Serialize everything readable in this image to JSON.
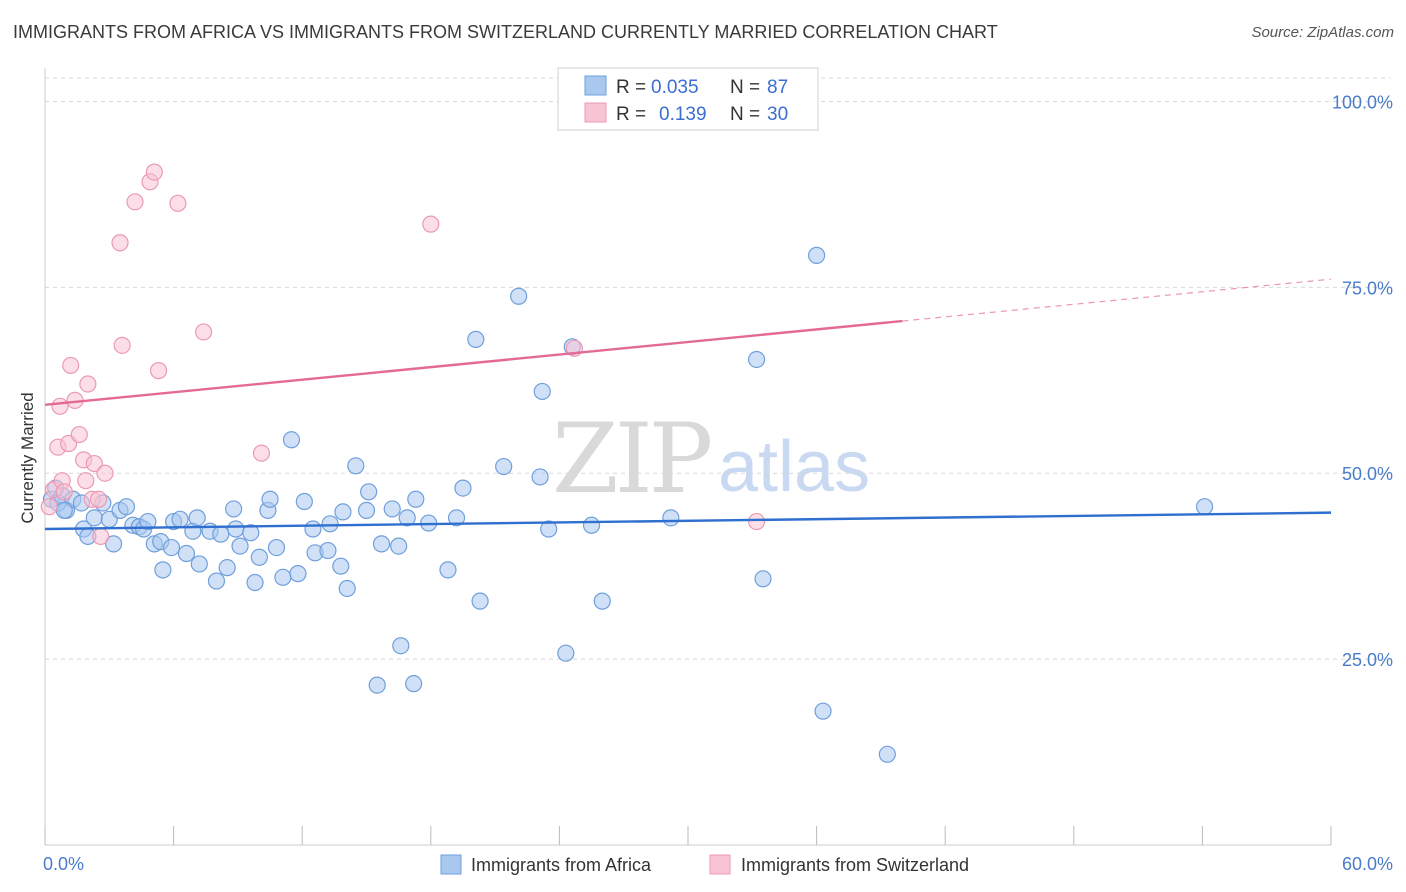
{
  "title": "IMMIGRANTS FROM AFRICA VS IMMIGRANTS FROM SWITZERLAND CURRENTLY MARRIED CORRELATION CHART",
  "source": "Source: ZipAtlas.com",
  "watermark": {
    "zip": "ZIP",
    "atlas": "atlas"
  },
  "colors": {
    "africa_fill": "#a9c8f0",
    "africa_stroke": "#6f9fdc",
    "africa_line": "#2f6fcf",
    "swiss_fill": "#f8c3d3",
    "swiss_stroke": "#ec9ab4",
    "swiss_line": "#e46a93",
    "tick_label": "#4a7cc9",
    "grid": "#d8d8d8"
  },
  "legend": {
    "r_label": "R =",
    "n_label": "N =",
    "entries": [
      {
        "r": "0.035",
        "n": "87"
      },
      {
        "r": "0.139",
        "n": "30"
      }
    ]
  },
  "chart_data": {
    "type": "scatter",
    "title": "IMMIGRANTS FROM AFRICA VS IMMIGRANTS FROM SWITZERLAND CURRENTLY MARRIED CORRELATION CHART",
    "xlabel": "",
    "ylabel": "Currently Married",
    "xlim": [
      0,
      60
    ],
    "ylim": [
      0,
      104.5
    ],
    "x_tick_labels": [
      {
        "value": 0,
        "label": "0.0%"
      },
      {
        "value": 60,
        "label": "60.0%"
      }
    ],
    "x_minor_ticks": [
      0,
      6,
      12,
      18,
      24,
      30,
      36,
      42,
      48,
      54,
      60
    ],
    "y_ticks": [
      {
        "value": 25,
        "label": "25.0%"
      },
      {
        "value": 50,
        "label": "50.0%"
      },
      {
        "value": 75,
        "label": "75.0%"
      },
      {
        "value": 100,
        "label": "100.0%"
      }
    ],
    "grid": true,
    "legend_position": "top-center",
    "series": [
      {
        "name": "Immigrants from Africa",
        "r": 0.035,
        "n": 87,
        "trend": {
          "x0": 0,
          "y0": 42.5,
          "x1": 60,
          "y1": 44.7,
          "solid_until": 60
        },
        "points": [
          [
            0.3,
            46.5
          ],
          [
            0.5,
            48
          ],
          [
            0.8,
            47
          ],
          [
            1,
            45
          ],
          [
            0.6,
            46
          ],
          [
            1.3,
            46.5
          ],
          [
            1.7,
            46
          ],
          [
            1.8,
            42.5
          ],
          [
            2,
            41.5
          ],
          [
            2.3,
            44
          ],
          [
            2.7,
            46
          ],
          [
            3,
            43.8
          ],
          [
            3.2,
            40.5
          ],
          [
            3.5,
            45
          ],
          [
            3.8,
            45.5
          ],
          [
            4.1,
            43
          ],
          [
            4.4,
            42.8
          ],
          [
            4.6,
            42.5
          ],
          [
            4.8,
            43.5
          ],
          [
            5.1,
            40.5
          ],
          [
            5.4,
            40.8
          ],
          [
            5.5,
            37
          ],
          [
            5.9,
            40
          ],
          [
            6,
            43.5
          ],
          [
            6.3,
            43.8
          ],
          [
            6.6,
            39.2
          ],
          [
            6.9,
            42.2
          ],
          [
            7.1,
            44
          ],
          [
            7.2,
            37.8
          ],
          [
            7.7,
            42.2
          ],
          [
            8,
            35.5
          ],
          [
            8.2,
            41.8
          ],
          [
            8.5,
            37.3
          ],
          [
            8.8,
            45.2
          ],
          [
            8.9,
            42.5
          ],
          [
            9.1,
            40.2
          ],
          [
            9.6,
            42
          ],
          [
            9.8,
            35.3
          ],
          [
            10,
            38.7
          ],
          [
            10.4,
            45
          ],
          [
            10.5,
            46.5
          ],
          [
            10.8,
            40
          ],
          [
            11.1,
            36
          ],
          [
            11.5,
            54.5
          ],
          [
            11.8,
            36.5
          ],
          [
            12.1,
            46.2
          ],
          [
            12.5,
            42.5
          ],
          [
            12.6,
            39.3
          ],
          [
            13.2,
            39.6
          ],
          [
            13.3,
            43.2
          ],
          [
            13.8,
            37.5
          ],
          [
            13.9,
            44.8
          ],
          [
            14.1,
            34.5
          ],
          [
            14.5,
            51
          ],
          [
            15,
            45
          ],
          [
            15.1,
            47.5
          ],
          [
            15.5,
            21.5
          ],
          [
            15.7,
            40.5
          ],
          [
            16.2,
            45.2
          ],
          [
            16.5,
            40.2
          ],
          [
            16.6,
            26.8
          ],
          [
            16.9,
            44
          ],
          [
            17.2,
            21.7
          ],
          [
            17.3,
            46.5
          ],
          [
            17.9,
            43.3
          ],
          [
            18.8,
            37
          ],
          [
            19.2,
            44
          ],
          [
            19.5,
            48
          ],
          [
            20.1,
            68
          ],
          [
            20.3,
            32.8
          ],
          [
            21.4,
            50.9
          ],
          [
            22.1,
            73.8
          ],
          [
            23.1,
            49.5
          ],
          [
            23.2,
            61
          ],
          [
            23.5,
            42.5
          ],
          [
            24.3,
            25.8
          ],
          [
            24.6,
            67
          ],
          [
            25.5,
            43
          ],
          [
            26,
            32.8
          ],
          [
            29.2,
            44
          ],
          [
            33.2,
            65.3
          ],
          [
            33.5,
            35.8
          ],
          [
            36,
            79.3
          ],
          [
            36.3,
            18
          ],
          [
            39.3,
            12.2
          ],
          [
            54.1,
            45.5
          ],
          [
            0.9,
            45
          ]
        ]
      },
      {
        "name": "Immigrants from Switzerland",
        "r": 0.139,
        "n": 30,
        "trend": {
          "x0": 0,
          "y0": 59.2,
          "x1": 60,
          "y1": 76.1,
          "solid_until": 40
        },
        "points": [
          [
            0.2,
            45.5
          ],
          [
            0.4,
            47.8
          ],
          [
            0.6,
            53.5
          ],
          [
            0.7,
            59
          ],
          [
            0.8,
            49
          ],
          [
            0.9,
            47.5
          ],
          [
            1.1,
            54
          ],
          [
            1.2,
            64.5
          ],
          [
            1.4,
            59.8
          ],
          [
            1.6,
            55.2
          ],
          [
            1.8,
            51.8
          ],
          [
            1.9,
            49
          ],
          [
            2,
            62
          ],
          [
            2.2,
            46.5
          ],
          [
            2.3,
            51.3
          ],
          [
            2.5,
            46.5
          ],
          [
            2.6,
            41.5
          ],
          [
            2.8,
            50
          ],
          [
            3.5,
            81
          ],
          [
            3.6,
            67.2
          ],
          [
            4.2,
            86.5
          ],
          [
            4.9,
            89.2
          ],
          [
            5.1,
            90.5
          ],
          [
            5.3,
            63.8
          ],
          [
            6.2,
            86.3
          ],
          [
            7.4,
            69
          ],
          [
            10.1,
            52.7
          ],
          [
            18,
            83.5
          ],
          [
            24.7,
            66.8
          ],
          [
            33.2,
            43.5
          ]
        ]
      }
    ]
  },
  "bottom_legend": [
    {
      "label": "Immigrants from Africa"
    },
    {
      "label": "Immigrants from Switzerland"
    }
  ]
}
